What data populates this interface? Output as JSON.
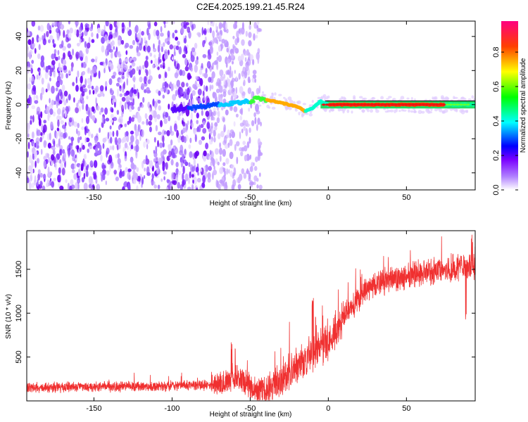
{
  "title": "C2E4.2025.199.21.45.R24",
  "chart_data": [
    {
      "type": "heatmap",
      "xlabel": "Height of straight line (km)",
      "ylabel": "Frequency (Hz)",
      "xlim": [
        -193,
        94
      ],
      "ylim": [
        -50,
        49
      ],
      "xticks": [
        -150,
        -100,
        -50,
        0,
        50
      ],
      "yticks": [
        -40,
        -20,
        0,
        20,
        40
      ],
      "colorbar": {
        "label": "Normalized spectral amplitude",
        "range": [
          0.0,
          0.98
        ],
        "ticks": [
          0.0,
          0.2,
          0.4,
          0.6,
          0.8
        ],
        "colors": [
          "#ffffff",
          "#7a00ff",
          "#0000ff",
          "#00ffff",
          "#00ff00",
          "#ffff00",
          "#ff0000",
          "#ff0080"
        ]
      },
      "ridge": {
        "x": [
          -100,
          -90,
          -80,
          -70,
          -60,
          -50,
          -45,
          -40,
          -35,
          -30,
          -25,
          -20,
          -15,
          -10,
          -5,
          0,
          20,
          50,
          80,
          94
        ],
        "y": [
          -3,
          -2,
          -1,
          0,
          1,
          2,
          4,
          3,
          2,
          1,
          0,
          -1,
          -4,
          -2,
          2,
          0,
          0,
          0,
          0,
          0
        ]
      },
      "scatter_x_range": [
        -193,
        -43
      ]
    },
    {
      "type": "line",
      "xlabel": "Height of straight line (km)",
      "ylabel": "SNR (10 * v/v)",
      "xlim": [
        -193,
        94
      ],
      "ylim": [
        0,
        1940
      ],
      "xticks": [
        -150,
        -100,
        -50,
        0,
        50
      ],
      "yticks": [
        500,
        1000,
        1500
      ],
      "color": "#f03030",
      "envelope": {
        "x": [
          -193,
          -150,
          -100,
          -75,
          -65,
          -60,
          -55,
          -50,
          -45,
          -40,
          -35,
          -30,
          -25,
          -20,
          -15,
          -10,
          -5,
          0,
          5,
          10,
          15,
          20,
          25,
          30,
          40,
          50,
          60,
          70,
          80,
          94
        ],
        "y": [
          150,
          160,
          170,
          180,
          220,
          300,
          250,
          150,
          100,
          110,
          160,
          250,
          320,
          380,
          450,
          540,
          620,
          700,
          820,
          960,
          1080,
          1190,
          1280,
          1340,
          1380,
          1420,
          1450,
          1480,
          1510,
          1540
        ]
      }
    }
  ]
}
